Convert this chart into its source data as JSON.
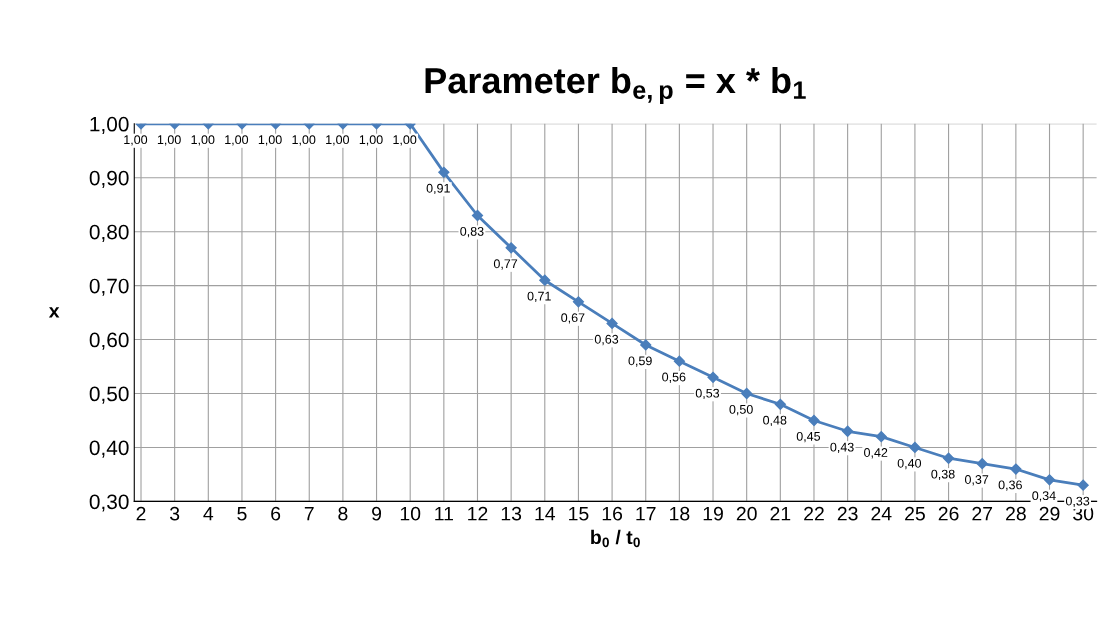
{
  "chart_data": {
    "type": "line",
    "title": "Parameter b$_{e,p}$ = x * b$_{1}$",
    "xlabel": "b$_{0}$ / t$_{0}$",
    "ylabel": "x",
    "categories": [
      "2",
      "3",
      "4",
      "5",
      "6",
      "7",
      "8",
      "9",
      "10",
      "11",
      "12",
      "13",
      "14",
      "15",
      "16",
      "17",
      "18",
      "19",
      "20",
      "21",
      "22",
      "23",
      "24",
      "25",
      "26",
      "27",
      "28",
      "29",
      "30"
    ],
    "series": [
      {
        "color": "#4a7ebb",
        "values": [
          1.0,
          1.0,
          1.0,
          1.0,
          1.0,
          1.0,
          1.0,
          1.0,
          1.0,
          0.91,
          0.83,
          0.77,
          0.71,
          0.67,
          0.63,
          0.59,
          0.56,
          0.53,
          0.5,
          0.48,
          0.45,
          0.43,
          0.42,
          0.4,
          0.38,
          0.37,
          0.36,
          0.34,
          0.33
        ],
        "value_labels": [
          "1,00",
          "1,00",
          "1,00",
          "1,00",
          "1,00",
          "1,00",
          "1,00",
          "1,00",
          "1,00",
          "0,91",
          "0,83",
          "0,77",
          "0,71",
          "0,67",
          "0,63",
          "0,59",
          "0,56",
          "0,53",
          "0,50",
          "0,48",
          "0,45",
          "0,43",
          "0,42",
          "0,40",
          "0,38",
          "0,37",
          "0,36",
          "0,34",
          "0,33"
        ]
      }
    ],
    "ylim": [
      0.3,
      1.0
    ],
    "yticks": [
      {
        "value": 0.3,
        "label": "0,30"
      },
      {
        "value": 0.4,
        "label": "0,40"
      },
      {
        "value": 0.5,
        "label": "0,50"
      },
      {
        "value": 0.6,
        "label": "0,60"
      },
      {
        "value": 0.7,
        "label": "0,70"
      },
      {
        "value": 0.8,
        "label": "0,80"
      },
      {
        "value": 0.9,
        "label": "0,90"
      },
      {
        "value": 1.0,
        "label": "1,00"
      }
    ],
    "grid": true,
    "marker": "diamond",
    "line_style": "solid"
  }
}
